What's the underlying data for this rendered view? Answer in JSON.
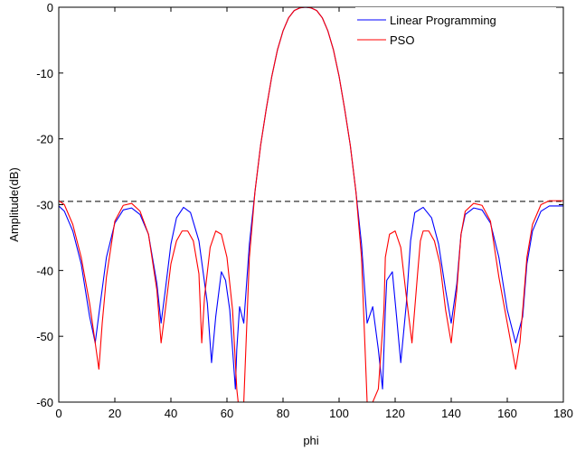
{
  "chart_data": {
    "type": "line",
    "title": "",
    "xlabel": "phi",
    "ylabel": "Amplitude(dB)",
    "xlim": [
      0,
      180
    ],
    "ylim": [
      -60,
      0
    ],
    "xticks": [
      0,
      20,
      40,
      60,
      80,
      100,
      120,
      140,
      160,
      180
    ],
    "yticks": [
      0,
      -10,
      -20,
      -30,
      -40,
      -50,
      -60
    ],
    "xtick_labels": [
      "0",
      "20",
      "40",
      "60",
      "80",
      "100",
      "120",
      "140",
      "160",
      "180"
    ],
    "ytick_labels": [
      "0",
      "-10",
      "-20",
      "-30",
      "-40",
      "-50",
      "-60"
    ],
    "grid": false,
    "legend": "top-right",
    "reference_line": {
      "y": -29.5,
      "style": "dashed",
      "color": "#000000"
    },
    "series": [
      {
        "name": "Linear Programming",
        "color": "#0000ff",
        "x": [
          0,
          2,
          5,
          8,
          11,
          13,
          14.5,
          17,
          20,
          23,
          26,
          29,
          32,
          35,
          36.5,
          38,
          40,
          42,
          44.5,
          47,
          50,
          53,
          54.5,
          56,
          58,
          59.5,
          61,
          63,
          63.5,
          64.5,
          66,
          68,
          70,
          72,
          74,
          76,
          78,
          80,
          82,
          84,
          86,
          88,
          90,
          92,
          94,
          96,
          98,
          100,
          102,
          104,
          106,
          108,
          110,
          112,
          114,
          115.5,
          116.5,
          117,
          119,
          120.5,
          122,
          124,
          125.5,
          127,
          130,
          133,
          135.5,
          138,
          140,
          142,
          143.5,
          145,
          148,
          151,
          154,
          157,
          160,
          163,
          165.5,
          167,
          169,
          172,
          175,
          178,
          180
        ],
        "y": [
          -30.2,
          -31,
          -34,
          -39,
          -47,
          -51,
          -46,
          -38,
          -32.8,
          -30.8,
          -30.5,
          -31.5,
          -34.5,
          -42,
          -48,
          -43,
          -36,
          -32,
          -30.4,
          -31.2,
          -35.5,
          -45,
          -54,
          -47,
          -40.2,
          -41.5,
          -46,
          -58,
          -52,
          -45.5,
          -48,
          -36,
          -28,
          -21,
          -15.5,
          -10.5,
          -6.5,
          -3.6,
          -1.6,
          -0.5,
          -0.1,
          0,
          -0.1,
          -0.5,
          -1.6,
          -3.6,
          -6.5,
          -10.5,
          -15.5,
          -21,
          -28,
          -36,
          -48,
          -45.5,
          -52,
          -58,
          -46,
          -41.5,
          -40.2,
          -47,
          -54,
          -45,
          -35.5,
          -31.2,
          -30.4,
          -32,
          -36,
          -43,
          -48,
          -42,
          -34.5,
          -31.5,
          -30.5,
          -30.8,
          -32.8,
          -38,
          -46,
          -51,
          -47,
          -39,
          -34,
          -31,
          -30.2,
          -30.2,
          -30.2
        ]
      },
      {
        "name": "PSO",
        "color": "#ff0000",
        "x": [
          0,
          2,
          5,
          8,
          11,
          13,
          14.3,
          15.5,
          17,
          20,
          23,
          26,
          29,
          32,
          35,
          36.5,
          38,
          40,
          42,
          44,
          46,
          48,
          50,
          51,
          52,
          54,
          56,
          58,
          60,
          62,
          63.5,
          64,
          66,
          68,
          70,
          72,
          74,
          76,
          78,
          80,
          82,
          84,
          86,
          88,
          90,
          92,
          94,
          96,
          98,
          100,
          102,
          104,
          106,
          108,
          110,
          112,
          114,
          116,
          116.5,
          118,
          120,
          122,
          124,
          126,
          128,
          129,
          130,
          132,
          134,
          136,
          138,
          140,
          142,
          143.5,
          145,
          148,
          151,
          154,
          157,
          160,
          163,
          164.5,
          165.7,
          167,
          169,
          172,
          175,
          178,
          180
        ],
        "y": [
          -29.4,
          -30,
          -33,
          -38,
          -45,
          -51,
          -55,
          -48,
          -41,
          -32.5,
          -30.1,
          -29.8,
          -31,
          -34.5,
          -43,
          -51,
          -46,
          -39,
          -35.5,
          -34,
          -34,
          -35.5,
          -40.5,
          -51,
          -44,
          -36.5,
          -34,
          -34.5,
          -38,
          -46,
          -58,
          -60,
          -60,
          -38,
          -28,
          -21,
          -15.5,
          -10.5,
          -6.5,
          -3.6,
          -1.6,
          -0.5,
          -0.1,
          0,
          -0.1,
          -0.5,
          -1.6,
          -3.6,
          -6.5,
          -10.5,
          -15.5,
          -21,
          -28,
          -38,
          -60,
          -60,
          -58,
          -46,
          -38,
          -34.5,
          -34,
          -36.5,
          -44,
          -51,
          -40.5,
          -35.5,
          -34,
          -34,
          -35.5,
          -39,
          -46,
          -51,
          -43,
          -34.5,
          -31,
          -29.8,
          -30.1,
          -32.5,
          -41,
          -48,
          -55,
          -51,
          -45,
          -38,
          -33,
          -30,
          -29.4,
          -29.4,
          -29.4
        ]
      }
    ]
  }
}
